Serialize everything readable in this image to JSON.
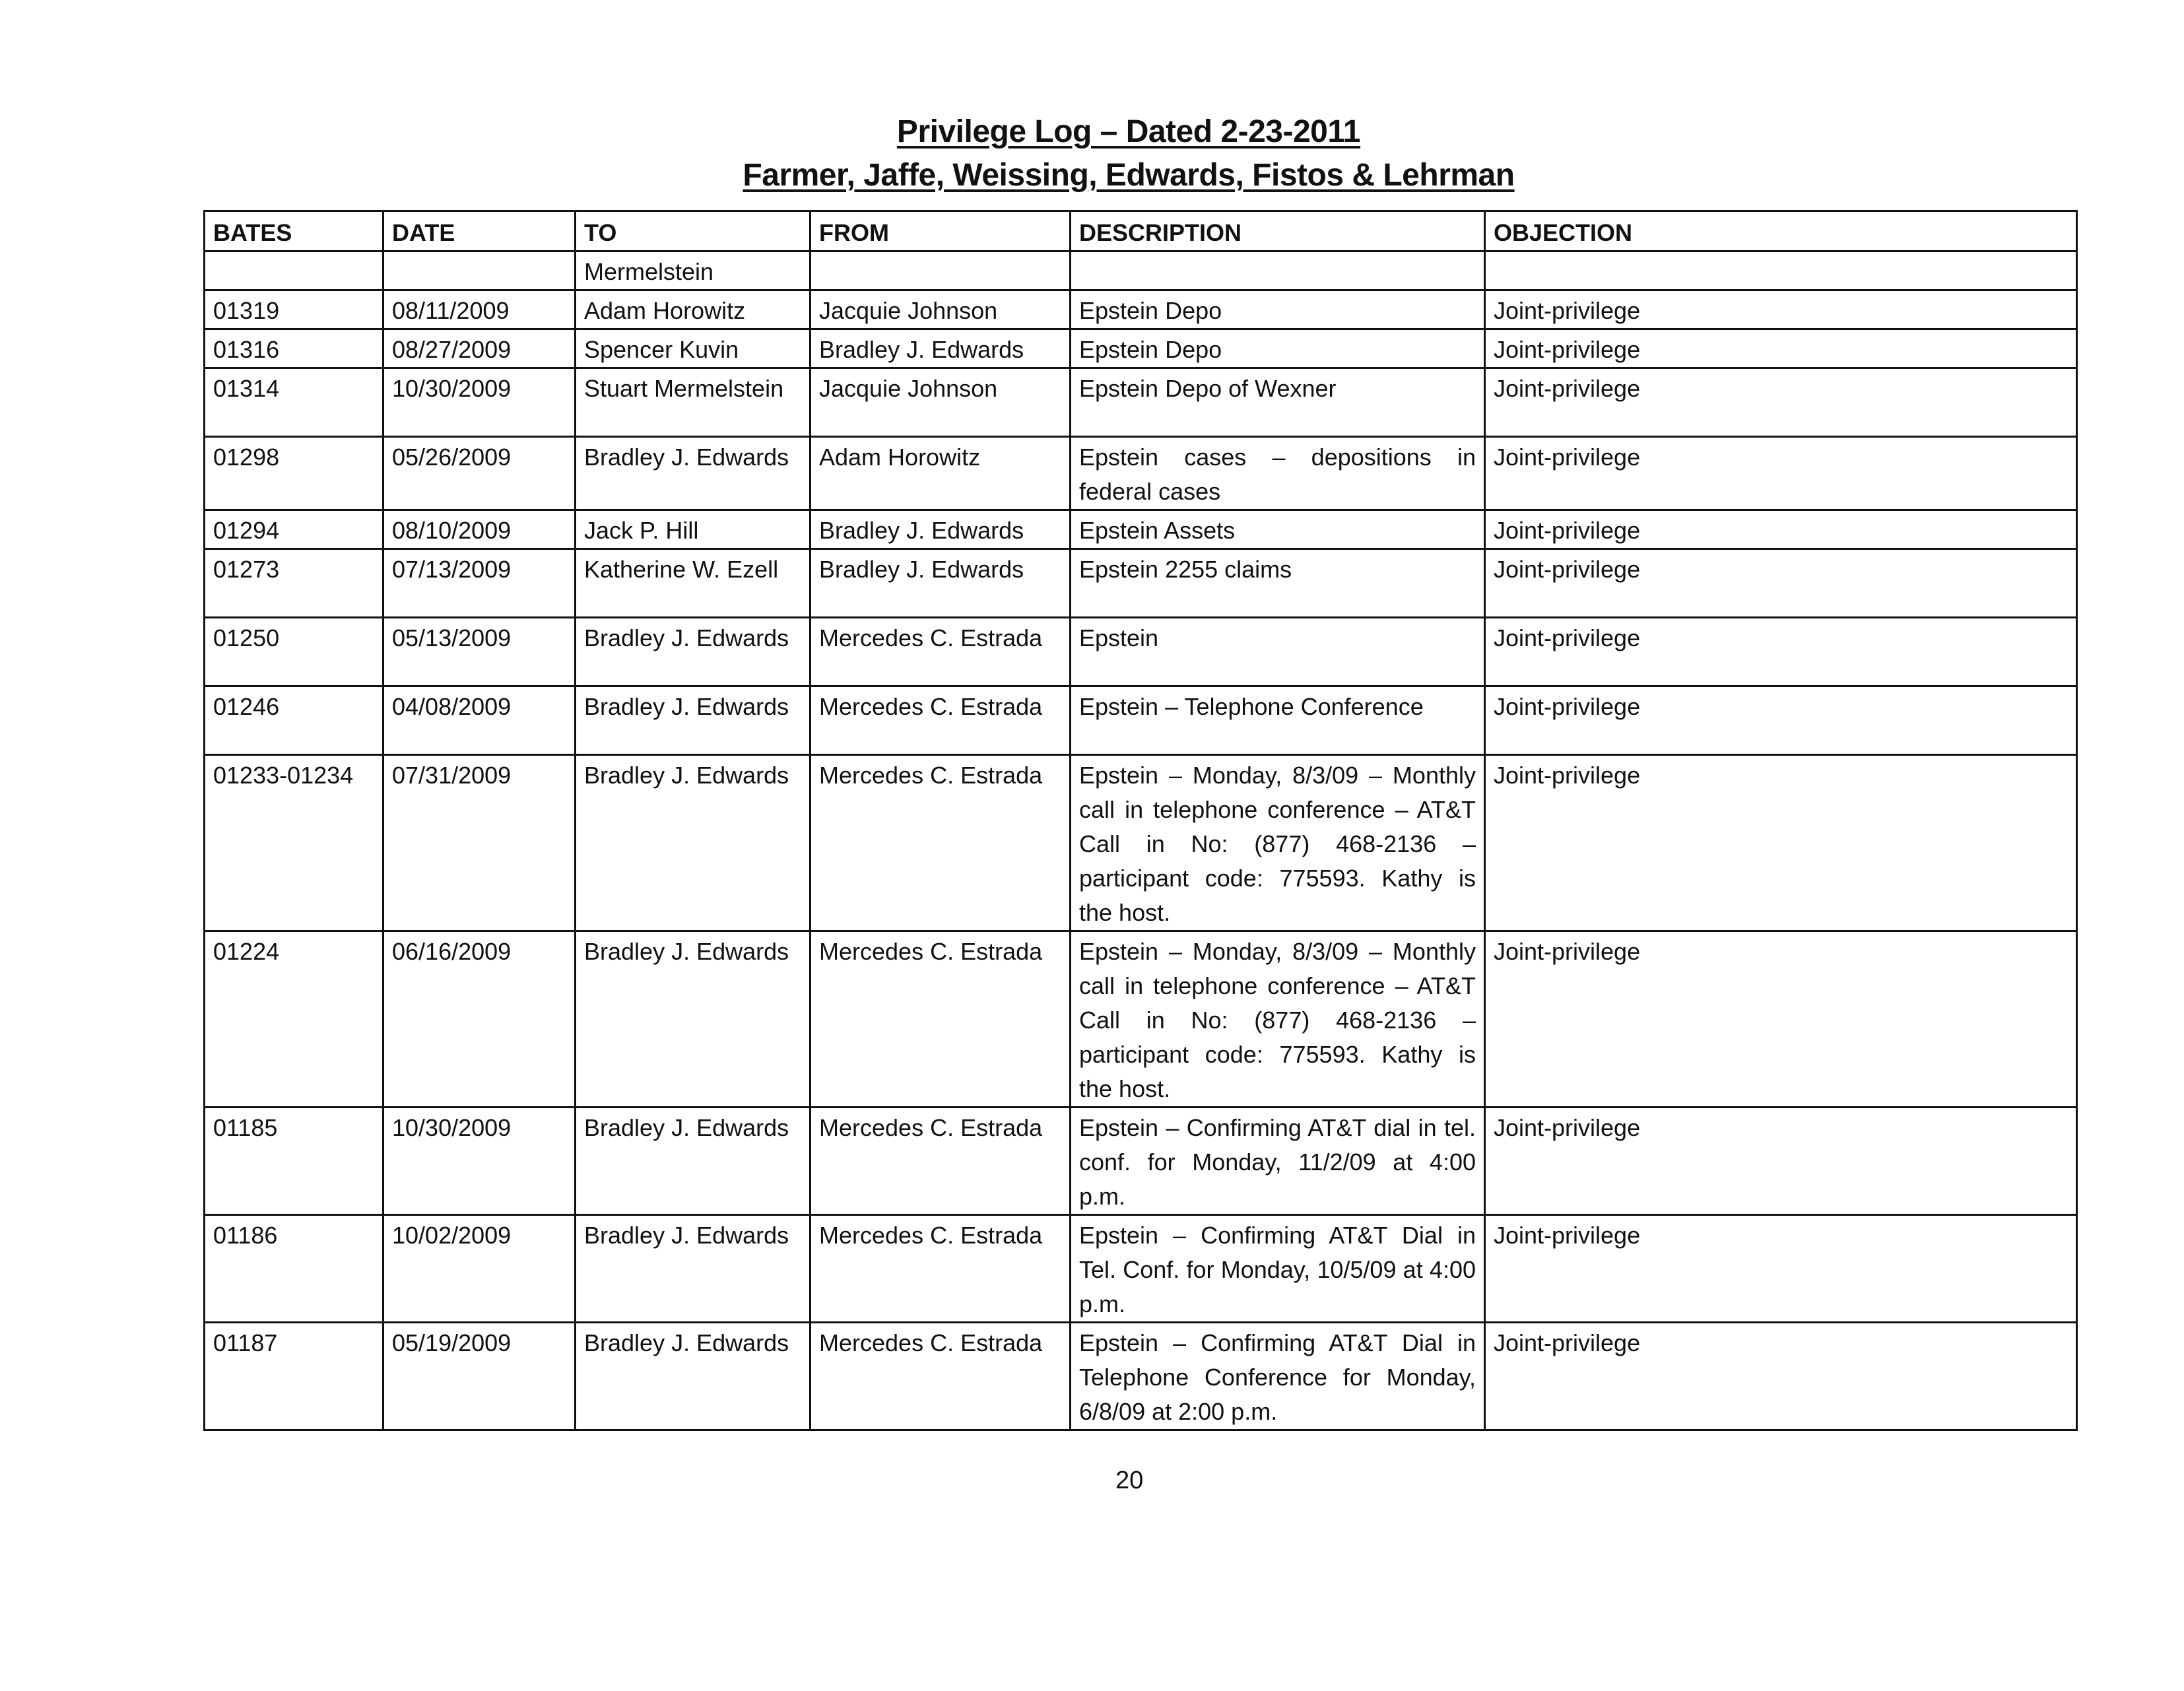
{
  "title": "Privilege Log – Dated 2-23-2011",
  "subtitle": "Farmer, Jaffe, Weissing, Edwards, Fistos & Lehrman",
  "columns": [
    "BATES",
    "DATE",
    "TO",
    "FROM",
    "DESCRIPTION",
    "OBJECTION"
  ],
  "rows": [
    {
      "bates": "",
      "date": "",
      "to": "Mermelstein",
      "from": "",
      "description": "",
      "objection": ""
    },
    {
      "bates": "01319",
      "date": "08/11/2009",
      "to": "Adam Horowitz",
      "from": "Jacquie Johnson",
      "description": "Epstein Depo",
      "objection": "Joint-privilege"
    },
    {
      "bates": "01316",
      "date": "08/27/2009",
      "to": "Spencer Kuvin",
      "from": "Bradley J. Edwards",
      "description": "Epstein Depo",
      "objection": "Joint-privilege"
    },
    {
      "bates": "01314",
      "date": "10/30/2009",
      "to": "Stuart Mermelstein",
      "from": "Jacquie Johnson",
      "description": "Epstein Depo of Wexner",
      "objection": "Joint-privilege"
    },
    {
      "bates": "01298",
      "date": "05/26/2009",
      "to": "Bradley J. Edwards",
      "from": "Adam Horowitz",
      "description": "Epstein cases – depositions in federal cases",
      "objection": "Joint-privilege"
    },
    {
      "bates": "01294",
      "date": "08/10/2009",
      "to": "Jack P. Hill",
      "from": "Bradley J. Edwards",
      "description": "Epstein Assets",
      "objection": "Joint-privilege"
    },
    {
      "bates": "01273",
      "date": "07/13/2009",
      "to": "Katherine W. Ezell",
      "from": "Bradley J. Edwards",
      "description": "Epstein 2255 claims",
      "objection": "Joint-privilege"
    },
    {
      "bates": "01250",
      "date": "05/13/2009",
      "to": "Bradley J. Edwards",
      "from": "Mercedes C. Estrada",
      "description": "Epstein",
      "objection": "Joint-privilege"
    },
    {
      "bates": "01246",
      "date": "04/08/2009",
      "to": "Bradley J. Edwards",
      "from": "Mercedes C. Estrada",
      "description": "Epstein – Telephone Conference",
      "objection": "Joint-privilege"
    },
    {
      "bates": "01233-01234",
      "date": "07/31/2009",
      "to": "Bradley J. Edwards",
      "from": "Mercedes C. Estrada",
      "description": "Epstein – Monday, 8/3/09 – Monthly call in telephone conference – AT&T Call in No: (877) 468-2136 – participant code: 775593. Kathy is the host.",
      "objection": "Joint-privilege"
    },
    {
      "bates": "01224",
      "date": "06/16/2009",
      "to": "Bradley J. Edwards",
      "from": "Mercedes C. Estrada",
      "description": "Epstein – Monday, 8/3/09 – Monthly call in telephone conference – AT&T Call in No: (877) 468-2136 – participant code: 775593. Kathy is the host.",
      "objection": "Joint-privilege"
    },
    {
      "bates": "01185",
      "date": "10/30/2009",
      "to": "Bradley J. Edwards",
      "from": "Mercedes C. Estrada",
      "description": "Epstein – Confirming AT&T dial in tel. conf. for Monday, 11/2/09 at 4:00 p.m.",
      "objection": "Joint-privilege"
    },
    {
      "bates": "01186",
      "date": "10/02/2009",
      "to": "Bradley J. Edwards",
      "from": "Mercedes C. Estrada",
      "description": "Epstein – Confirming AT&T Dial in Tel. Conf. for Monday, 10/5/09 at 4:00 p.m.",
      "objection": "Joint-privilege"
    },
    {
      "bates": "01187",
      "date": "05/19/2009",
      "to": "Bradley J. Edwards",
      "from": "Mercedes C. Estrada",
      "description": "Epstein – Confirming AT&T Dial in Telephone Conference for Monday, 6/8/09 at 2:00 p.m.",
      "objection": "Joint-privilege"
    }
  ],
  "page_number": "20"
}
